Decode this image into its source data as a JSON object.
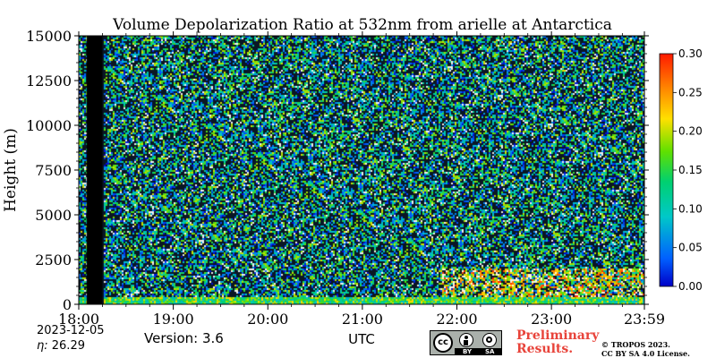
{
  "chart_data": {
    "type": "heatmap",
    "title": "Volume Depolarization Ratio at 532nm from arielle at Antarctica",
    "xlabel": "UTC",
    "ylabel": "Height (m)",
    "x_ticks": [
      "18:00",
      "19:00",
      "20:00",
      "21:00",
      "22:00",
      "23:00",
      "23:59"
    ],
    "y_ticks": [
      "0",
      "2500",
      "5000",
      "7500",
      "10000",
      "12500",
      "15000"
    ],
    "xlim": [
      "18:00",
      "23:59"
    ],
    "ylim": [
      0,
      15000
    ],
    "colorbar": {
      "ticks": [
        "0.00",
        "0.05",
        "0.10",
        "0.15",
        "0.20",
        "0.25",
        "0.30"
      ],
      "range": [
        0.0,
        0.3
      ],
      "colormap": "jet"
    },
    "no_data_interval": [
      "18:05",
      "18:15"
    ],
    "features": {
      "near_surface_layer_height_m": [
        0,
        400
      ],
      "enhanced_depolarization_interval": [
        "21:50",
        "23:59"
      ],
      "enhanced_depolarization_height_m": [
        0,
        2000
      ]
    }
  },
  "footer": {
    "date": "2023-12-05",
    "eta_label": "η:",
    "eta_value": "26.29",
    "version": "Version: 3.6",
    "preliminary_line1": "Preliminary",
    "preliminary_line2": "Results.",
    "copyright_line1": "© TROPOS 2023.",
    "copyright_line2": "CC BY SA 4.0 License.",
    "cc_labels": [
      "cc",
      "BY",
      "SA"
    ]
  },
  "colors": {
    "preliminary": "#e8433a",
    "no_data": "#000000"
  }
}
